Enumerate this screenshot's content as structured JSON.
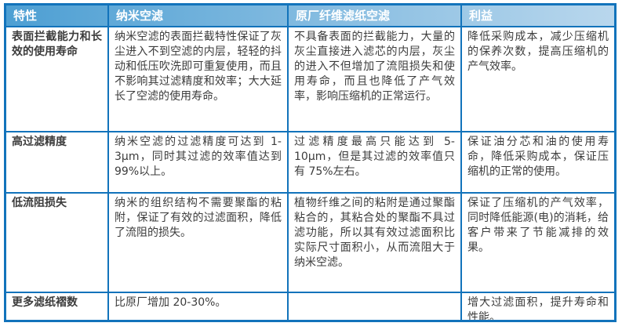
{
  "colors": {
    "border": "#1273bb",
    "header_gradient_left": "#4d9fd3",
    "header_gradient_right": "#b9d7ed",
    "header_text": "#ffffff",
    "body_text": "#3c3c3c",
    "page_background": "#ffffff"
  },
  "table": {
    "headers": [
      "特性",
      "纳米空滤",
      "原厂纤维滤纸空滤",
      "利益"
    ],
    "rows": [
      [
        "表面拦截能力和长效的使用寿命",
        "纳米空滤的表面拦截特性保证了灰尘进入不到空滤的内层，轻轻的抖动和低压吹洗即可重复使用，而且不影响其过滤精度和效率；大大延长了空滤的使用寿命。",
        "不具备表面的拦截能力，大量的灰尘直接进入滤芯的内层，灰尘的进入不但增加了流阻损失和使用寿命，而且也降低了产气效率，影响压缩机的正常运行。",
        "降低采购成本，减少压缩机的保养次数，提高压缩机的产气效率。"
      ],
      [
        "高过滤精度",
        "纳米空滤的过滤精度可达到 1-3μm，同时其过滤的效率值达到 99%以上。",
        "过滤精度最高只能达到 5-10μm，但是其过滤的效率值只有 75%左右。",
        "保证油分芯和油的使用寿命，降低采购成本，保证压缩机的正常的使用。"
      ],
      [
        "低流阻损失",
        "纳米的组织结构不需要聚酯的粘附，保证了有效的过滤面积，降低了流阻的损失。",
        "植物纤维之间的粘附是通过聚酯粘合的，其粘合处的聚酯不具过滤功能，所以其有效过滤面积比实际尺寸面积小，从而流阻大于纳米空滤。",
        "保证了压缩机的产气效率，同时降低能源(电)的消耗，给客户带来了节能减排的效果。"
      ],
      [
        "更多滤纸褶数",
        "比原厂增加 20-30%。",
        "",
        "增大过滤面积，提升寿命和性能。"
      ]
    ]
  }
}
